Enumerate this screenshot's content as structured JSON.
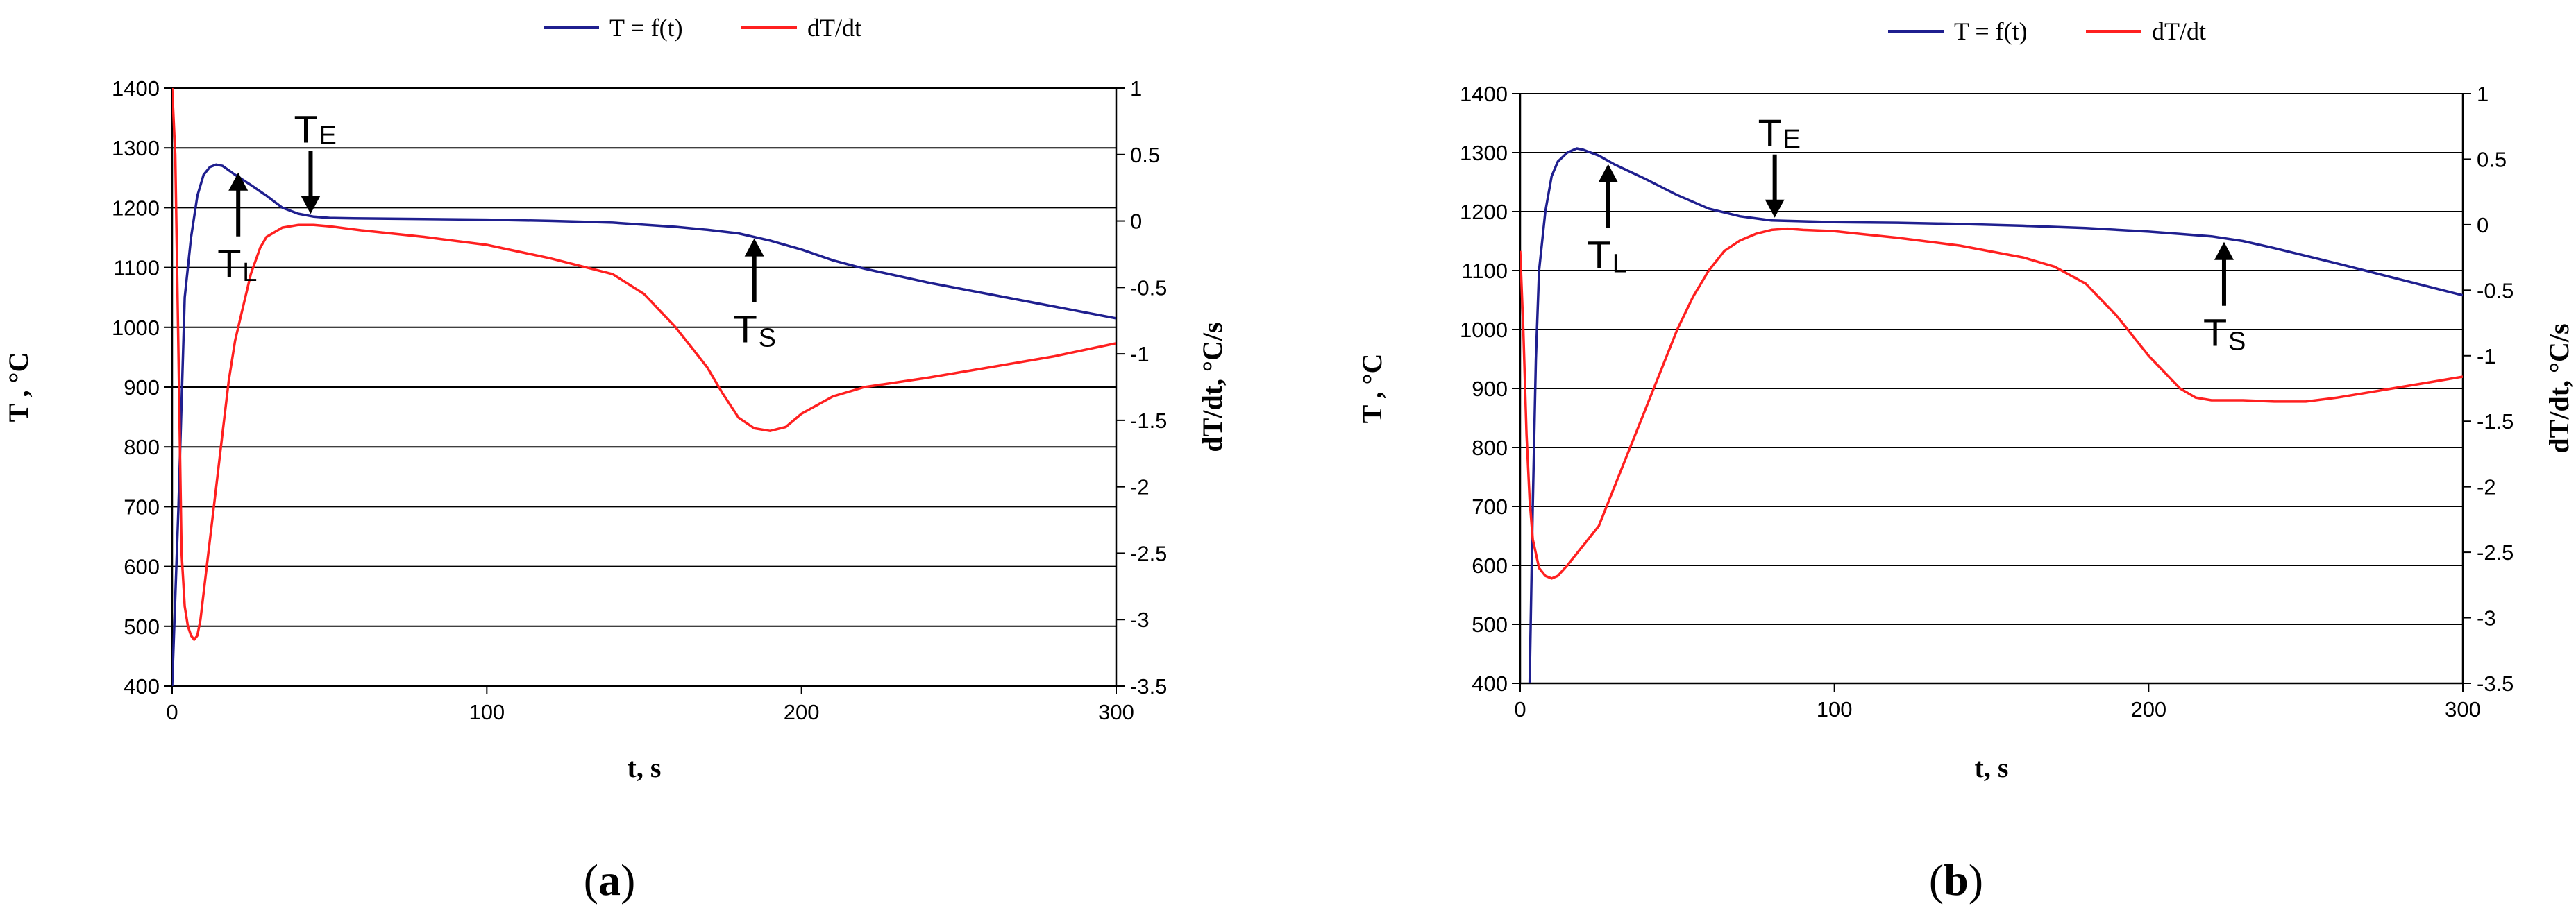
{
  "chart_data": [
    {
      "type": "line",
      "panel_label": "(a)",
      "panel_letter": "a",
      "xlabel": "t, s",
      "ylabel_left": "T , °C",
      "ylabel_right": "dT/dt, °C/s",
      "xlim": [
        0,
        300
      ],
      "ylim_left": [
        400,
        1400
      ],
      "ylim_right": [
        -3.5,
        1
      ],
      "x_ticks": [
        "0",
        "100",
        "200",
        "300"
      ],
      "y_left_ticks": [
        "400",
        "500",
        "600",
        "700",
        "800",
        "900",
        "1000",
        "1100",
        "1200",
        "1300",
        "1400"
      ],
      "y_right_ticks": [
        "-3.5",
        "-3",
        "-2.5",
        "-2",
        "-1.5",
        "-1",
        "-0.5",
        "0",
        "0.5",
        "1"
      ],
      "grid": "horizontal",
      "legend": {
        "placement": "top",
        "entries": [
          "T = f(t)",
          "dT/dt"
        ]
      },
      "colors": {
        "T": "#1f1f8f",
        "dTdt": "#ff2020"
      },
      "series": [
        {
          "name": "T = f(t)",
          "axis": "left",
          "color": "#1f1f8f",
          "x": [
            0,
            2,
            4,
            6,
            8,
            10,
            12,
            14,
            16,
            20,
            25,
            30,
            35,
            40,
            45,
            50,
            60,
            80,
            100,
            120,
            140,
            160,
            170,
            180,
            190,
            200,
            210,
            220,
            240,
            260,
            280,
            300
          ],
          "y": [
            400,
            700,
            1050,
            1150,
            1220,
            1255,
            1268,
            1272,
            1270,
            1255,
            1238,
            1220,
            1200,
            1190,
            1185,
            1183,
            1182,
            1181,
            1180,
            1178,
            1175,
            1168,
            1163,
            1157,
            1145,
            1130,
            1112,
            1098,
            1075,
            1055,
            1035,
            1015
          ]
        },
        {
          "name": "dT/dt",
          "axis": "right",
          "color": "#ff2020",
          "x": [
            0,
            1,
            2,
            3,
            4,
            5,
            6,
            7,
            8,
            9,
            10,
            12,
            14,
            16,
            18,
            20,
            22,
            25,
            28,
            30,
            35,
            40,
            45,
            50,
            60,
            80,
            100,
            120,
            140,
            150,
            160,
            170,
            175,
            180,
            185,
            190,
            195,
            200,
            210,
            220,
            240,
            260,
            280,
            300
          ],
          "y": [
            1.0,
            0.5,
            -1.0,
            -2.5,
            -2.9,
            -3.05,
            -3.12,
            -3.15,
            -3.12,
            -3.0,
            -2.8,
            -2.4,
            -2.0,
            -1.6,
            -1.2,
            -0.9,
            -0.7,
            -0.4,
            -0.2,
            -0.12,
            -0.05,
            -0.03,
            -0.03,
            -0.04,
            -0.07,
            -0.12,
            -0.18,
            -0.28,
            -0.4,
            -0.55,
            -0.8,
            -1.1,
            -1.3,
            -1.48,
            -1.56,
            -1.58,
            -1.55,
            -1.45,
            -1.32,
            -1.25,
            -1.18,
            -1.1,
            -1.02,
            -0.92
          ]
        }
      ],
      "annotations": [
        {
          "main": "T",
          "sub": "E",
          "x": 44,
          "y": 1185,
          "arrow": "down"
        },
        {
          "main": "T",
          "sub": "L",
          "x": 21,
          "y": 1268,
          "arrow": "up"
        },
        {
          "main": "T",
          "sub": "S",
          "x": 185,
          "y": 1158,
          "arrow": "up"
        }
      ]
    },
    {
      "type": "line",
      "panel_label": "(b)",
      "panel_letter": "b",
      "xlabel": "t, s",
      "ylabel_left": "T , °C",
      "ylabel_right": "dT/dt, °C/s",
      "xlim": [
        0,
        300
      ],
      "ylim_left": [
        400,
        1400
      ],
      "ylim_right": [
        -3.5,
        1
      ],
      "x_ticks": [
        "0",
        "100",
        "200",
        "300"
      ],
      "y_left_ticks": [
        "400",
        "500",
        "600",
        "700",
        "800",
        "900",
        "1000",
        "1100",
        "1200",
        "1300",
        "1400"
      ],
      "y_right_ticks": [
        "-3.5",
        "-3",
        "-2.5",
        "-2",
        "-1.5",
        "-1",
        "-0.5",
        "0",
        "0.5",
        "1"
      ],
      "grid": "horizontal",
      "legend": {
        "placement": "top",
        "entries": [
          "T = f(t)",
          "dT/dt"
        ]
      },
      "colors": {
        "T": "#1f1f8f",
        "dTdt": "#ff2020"
      },
      "series": [
        {
          "name": "T = f(t)",
          "axis": "left",
          "color": "#1f1f8f",
          "x": [
            3,
            4,
            5,
            6,
            8,
            10,
            12,
            15,
            18,
            20,
            25,
            30,
            40,
            50,
            60,
            70,
            80,
            100,
            120,
            140,
            160,
            180,
            200,
            210,
            220,
            230,
            240,
            260,
            280,
            300
          ],
          "y": [
            400,
            700,
            950,
            1100,
            1200,
            1260,
            1285,
            1300,
            1307,
            1305,
            1295,
            1280,
            1255,
            1228,
            1205,
            1192,
            1185,
            1182,
            1181,
            1179,
            1176,
            1172,
            1166,
            1162,
            1158,
            1150,
            1138,
            1112,
            1085,
            1058
          ]
        },
        {
          "name": "dT/dt",
          "axis": "right",
          "color": "#ff2020",
          "x": [
            0,
            1,
            2,
            3,
            4,
            6,
            8,
            10,
            12,
            15,
            20,
            25,
            30,
            35,
            40,
            45,
            50,
            55,
            60,
            65,
            70,
            75,
            80,
            85,
            90,
            100,
            120,
            140,
            160,
            170,
            180,
            190,
            200,
            210,
            215,
            220,
            230,
            240,
            250,
            260,
            270,
            280,
            290,
            300
          ],
          "y": [
            -0.2,
            -0.8,
            -1.6,
            -2.1,
            -2.4,
            -2.62,
            -2.68,
            -2.7,
            -2.68,
            -2.6,
            -2.45,
            -2.3,
            -2.0,
            -1.7,
            -1.4,
            -1.1,
            -0.8,
            -0.55,
            -0.35,
            -0.2,
            -0.12,
            -0.07,
            -0.04,
            -0.03,
            -0.04,
            -0.05,
            -0.1,
            -0.16,
            -0.25,
            -0.32,
            -0.45,
            -0.7,
            -1.0,
            -1.25,
            -1.32,
            -1.34,
            -1.34,
            -1.35,
            -1.35,
            -1.32,
            -1.28,
            -1.24,
            -1.2,
            -1.16
          ]
        }
      ],
      "annotations": [
        {
          "main": "T",
          "sub": "E",
          "x": 81,
          "y": 1185,
          "arrow": "down"
        },
        {
          "main": "T",
          "sub": "L",
          "x": 28,
          "y": 1290,
          "arrow": "up"
        },
        {
          "main": "T",
          "sub": "S",
          "x": 224,
          "y": 1158,
          "arrow": "up"
        }
      ]
    }
  ]
}
